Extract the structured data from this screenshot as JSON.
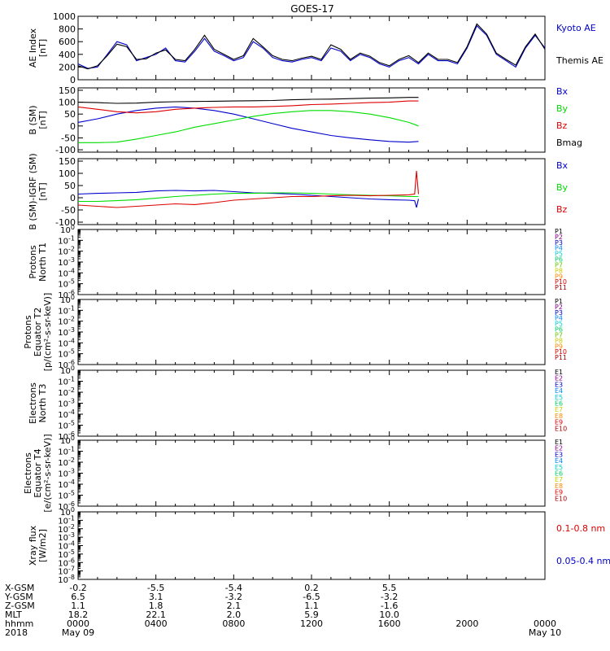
{
  "title": "GOES-17",
  "x_axis": {
    "hours": [
      0,
      4,
      8,
      12,
      16,
      20,
      24
    ],
    "hhmm_labels": [
      "0000",
      "0400",
      "0800",
      "1200",
      "1600",
      "2000",
      "0000"
    ],
    "start_date": "May 09",
    "end_date": "May 10",
    "year": "2018"
  },
  "orbit_table": {
    "row_labels": [
      "X-GSM",
      "Y-GSM",
      "Z-GSM",
      "MLT",
      "hhmm",
      "2018"
    ],
    "rows": [
      [
        "-0.2",
        "-5.5",
        "-5.4",
        "0.2",
        "5.5"
      ],
      [
        "6.5",
        "3.1",
        "-3.2",
        "-6.5",
        "-3.2"
      ],
      [
        "1.1",
        "1.8",
        "2.1",
        "1.1",
        "-1.6"
      ],
      [
        "18.2",
        "22.1",
        "2.0",
        "5.9",
        "10.0"
      ]
    ]
  },
  "colors": {
    "black": "#000000",
    "blue": "#0000cc",
    "green": "#00dd00",
    "red": "#dd0000"
  },
  "chart_data": [
    {
      "id": "ae",
      "type": "line",
      "ylabel": [
        "AE Index",
        "[nT]"
      ],
      "ylim": [
        0,
        1000
      ],
      "yticks": [
        0,
        200,
        400,
        600,
        800,
        1000
      ],
      "series": [
        {
          "name": "Kyoto AE",
          "color": "#0000cc",
          "x": [
            0,
            0.5,
            1,
            1.5,
            2,
            2.5,
            3,
            3.5,
            4,
            4.5,
            5,
            5.5,
            6,
            6.5,
            7,
            7.5,
            8,
            8.5,
            9,
            9.5,
            10,
            10.5,
            11,
            11.5,
            12,
            12.5,
            13,
            13.5,
            14,
            14.5,
            15,
            15.5,
            16,
            16.5,
            17,
            17.5,
            18,
            18.5,
            19,
            19.5,
            20,
            20.5,
            21,
            21.5,
            22,
            22.5,
            23,
            23.5,
            24
          ],
          "y": [
            250,
            180,
            200,
            400,
            600,
            550,
            300,
            350,
            400,
            500,
            300,
            280,
            450,
            650,
            450,
            380,
            300,
            350,
            600,
            500,
            350,
            300,
            280,
            320,
            350,
            300,
            500,
            450,
            300,
            400,
            350,
            250,
            200,
            300,
            350,
            250,
            400,
            300,
            300,
            250,
            500,
            850,
            700,
            400,
            300,
            200,
            500,
            700,
            500
          ]
        },
        {
          "name": "Themis AE",
          "color": "#000000",
          "x": [
            0,
            0.5,
            1,
            1.5,
            2,
            2.5,
            3,
            3.5,
            4,
            4.5,
            5,
            5.5,
            6,
            6.5,
            7,
            7.5,
            8,
            8.5,
            9,
            9.5,
            10,
            10.5,
            11,
            11.5,
            12,
            12.5,
            13,
            13.5,
            14,
            14.5,
            15,
            15.5,
            16,
            16.5,
            17,
            17.5,
            18,
            18.5,
            19,
            19.5,
            20,
            20.5,
            21,
            21.5,
            22,
            22.5,
            23,
            23.5,
            24
          ],
          "y": [
            220,
            170,
            220,
            380,
            560,
            520,
            320,
            330,
            420,
            470,
            320,
            300,
            480,
            700,
            480,
            400,
            320,
            380,
            650,
            520,
            380,
            320,
            300,
            340,
            370,
            320,
            550,
            480,
            320,
            420,
            370,
            270,
            220,
            320,
            380,
            270,
            420,
            320,
            320,
            270,
            520,
            880,
            720,
            420,
            320,
            230,
            520,
            720,
            480
          ]
        }
      ]
    },
    {
      "id": "b",
      "type": "line",
      "ylabel": [
        "B (SM)",
        "[nT]"
      ],
      "ylim": [
        -110,
        160
      ],
      "yticks": [
        -100,
        -50,
        0,
        50,
        100,
        150
      ],
      "series": [
        {
          "name": "Bx",
          "color": "#0000cc",
          "x": [
            0,
            1,
            2,
            3,
            4,
            5,
            6,
            7,
            8,
            9,
            10,
            11,
            12,
            13,
            14,
            15,
            16,
            17,
            17.5
          ],
          "y": [
            15,
            30,
            50,
            65,
            75,
            80,
            75,
            65,
            50,
            30,
            10,
            -10,
            -25,
            -40,
            -50,
            -58,
            -65,
            -68,
            -65
          ]
        },
        {
          "name": "By",
          "color": "#00dd00",
          "x": [
            0,
            1,
            2,
            3,
            4,
            5,
            6,
            7,
            8,
            9,
            10,
            11,
            12,
            13,
            14,
            15,
            16,
            17,
            17.5
          ],
          "y": [
            -70,
            -70,
            -68,
            -55,
            -40,
            -25,
            -5,
            10,
            25,
            40,
            52,
            60,
            65,
            65,
            60,
            50,
            35,
            15,
            0
          ]
        },
        {
          "name": "Bz",
          "color": "#dd0000",
          "x": [
            0,
            1,
            2,
            3,
            4,
            5,
            6,
            7,
            8,
            9,
            10,
            11,
            12,
            13,
            14,
            15,
            16,
            17,
            17.5
          ],
          "y": [
            80,
            70,
            60,
            55,
            60,
            70,
            75,
            78,
            80,
            80,
            82,
            85,
            90,
            92,
            95,
            98,
            100,
            105,
            105
          ]
        },
        {
          "name": "Bmag",
          "color": "#000000",
          "x": [
            0,
            1,
            2,
            3,
            4,
            5,
            6,
            7,
            8,
            9,
            10,
            11,
            12,
            13,
            14,
            15,
            16,
            17,
            17.5
          ],
          "y": [
            100,
            98,
            95,
            96,
            100,
            102,
            103,
            104,
            105,
            106,
            107,
            110,
            112,
            113,
            115,
            117,
            118,
            120,
            120
          ]
        }
      ]
    },
    {
      "id": "bd",
      "type": "line",
      "ylabel": [
        "B (SM)-IGRF (SM)",
        "[nT]"
      ],
      "ylim": [
        -110,
        160
      ],
      "yticks": [
        -100,
        -50,
        0,
        50,
        100,
        150
      ],
      "series": [
        {
          "name": "Bx",
          "color": "#0000cc",
          "x": [
            0,
            1,
            2,
            3,
            4,
            5,
            6,
            7,
            8,
            9,
            10,
            11,
            12,
            13,
            14,
            15,
            16,
            17,
            17.3,
            17.4,
            17.5
          ],
          "y": [
            15,
            18,
            20,
            22,
            28,
            30,
            28,
            30,
            25,
            20,
            18,
            15,
            10,
            5,
            0,
            -5,
            -8,
            -10,
            -12,
            -40,
            -5
          ]
        },
        {
          "name": "By",
          "color": "#00dd00",
          "x": [
            0,
            1,
            2,
            3,
            4,
            5,
            6,
            7,
            8,
            9,
            10,
            11,
            12,
            13,
            14,
            15,
            16,
            17,
            17.5
          ],
          "y": [
            -15,
            -15,
            -12,
            -8,
            -2,
            5,
            10,
            15,
            18,
            18,
            20,
            20,
            18,
            15,
            12,
            10,
            8,
            5,
            5
          ]
        },
        {
          "name": "Bz",
          "color": "#dd0000",
          "x": [
            0,
            1,
            2,
            3,
            4,
            5,
            6,
            7,
            8,
            9,
            10,
            11,
            12,
            13,
            14,
            15,
            16,
            17,
            17.3,
            17.4,
            17.5
          ],
          "y": [
            -30,
            -35,
            -40,
            -35,
            -30,
            -25,
            -28,
            -20,
            -10,
            -5,
            0,
            5,
            5,
            8,
            10,
            8,
            10,
            12,
            15,
            110,
            15
          ]
        }
      ]
    },
    {
      "id": "p1",
      "type": "line",
      "ylabel": [
        "Protons",
        "North T1"
      ],
      "log_range": [
        -6,
        0
      ],
      "legend": [
        {
          "label": "P1",
          "color": "#000000"
        },
        {
          "label": "P2",
          "color": "#880088"
        },
        {
          "label": "P3",
          "color": "#0000cc"
        },
        {
          "label": "P4",
          "color": "#0088ff"
        },
        {
          "label": "P5",
          "color": "#00cccc"
        },
        {
          "label": "P6",
          "color": "#00cc66"
        },
        {
          "label": "P7",
          "color": "#66cc00"
        },
        {
          "label": "P8",
          "color": "#cccc00"
        },
        {
          "label": "P9",
          "color": "#ff8800"
        },
        {
          "label": "P10",
          "color": "#dd0000"
        },
        {
          "label": "P11",
          "color": "#aa0000"
        }
      ],
      "series": []
    },
    {
      "id": "p2",
      "type": "line",
      "ylabel": [
        "Protons",
        "Equator T2",
        "[p/(cm²-s-sr-keV)]"
      ],
      "log_range": [
        -6,
        0
      ],
      "legend": [
        {
          "label": "P1",
          "color": "#000000"
        },
        {
          "label": "P2",
          "color": "#880088"
        },
        {
          "label": "P3",
          "color": "#0000cc"
        },
        {
          "label": "P4",
          "color": "#0088ff"
        },
        {
          "label": "P5",
          "color": "#00cccc"
        },
        {
          "label": "P6",
          "color": "#00cc66"
        },
        {
          "label": "P7",
          "color": "#66cc00"
        },
        {
          "label": "P8",
          "color": "#cccc00"
        },
        {
          "label": "P9",
          "color": "#ff8800"
        },
        {
          "label": "P10",
          "color": "#dd0000"
        },
        {
          "label": "P11",
          "color": "#aa0000"
        }
      ],
      "series": []
    },
    {
      "id": "e1",
      "type": "line",
      "ylabel": [
        "Electrons",
        "North T3"
      ],
      "log_range": [
        -6,
        0
      ],
      "legend": [
        {
          "label": "E1",
          "color": "#000000"
        },
        {
          "label": "E2",
          "color": "#880088"
        },
        {
          "label": "E3",
          "color": "#0000cc"
        },
        {
          "label": "E4",
          "color": "#0088ff"
        },
        {
          "label": "E5",
          "color": "#00cccc"
        },
        {
          "label": "E6",
          "color": "#00cc66"
        },
        {
          "label": "E7",
          "color": "#cccc00"
        },
        {
          "label": "E8",
          "color": "#ff8800"
        },
        {
          "label": "E9",
          "color": "#dd0000"
        },
        {
          "label": "E10",
          "color": "#aa0000"
        }
      ],
      "series": []
    },
    {
      "id": "e2",
      "type": "line",
      "ylabel": [
        "Electrons",
        "Equator T4",
        "[e/(cm²-s-sr-keV)]"
      ],
      "log_range": [
        -6,
        0
      ],
      "legend": [
        {
          "label": "E1",
          "color": "#000000"
        },
        {
          "label": "E2",
          "color": "#880088"
        },
        {
          "label": "E3",
          "color": "#0000cc"
        },
        {
          "label": "E4",
          "color": "#0088ff"
        },
        {
          "label": "E5",
          "color": "#00cccc"
        },
        {
          "label": "E6",
          "color": "#00cc66"
        },
        {
          "label": "E7",
          "color": "#cccc00"
        },
        {
          "label": "E8",
          "color": "#ff8800"
        },
        {
          "label": "E9",
          "color": "#dd0000"
        },
        {
          "label": "E10",
          "color": "#aa0000"
        }
      ],
      "series": []
    },
    {
      "id": "xray",
      "type": "line",
      "ylabel": [
        "Xray flux",
        "[W/m2]"
      ],
      "log_range": [
        -8,
        0
      ],
      "legend": [
        {
          "label": "0.1-0.8 nm",
          "color": "#dd0000"
        },
        {
          "label": "0.05-0.4 nm",
          "color": "#0000cc"
        }
      ],
      "series": []
    }
  ]
}
